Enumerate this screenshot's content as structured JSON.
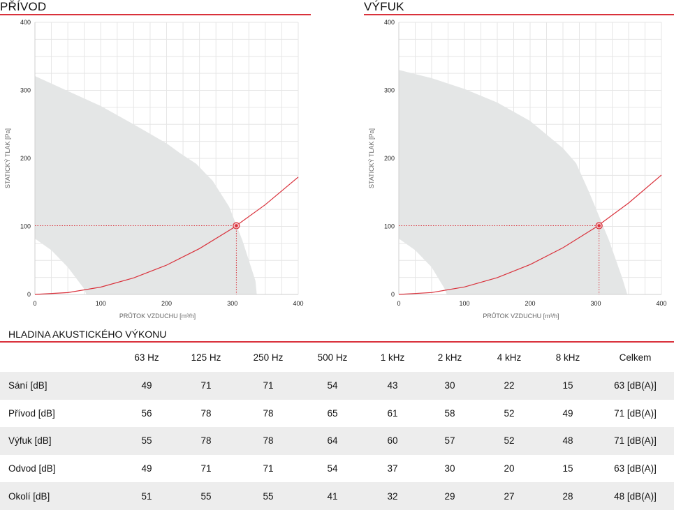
{
  "charts": {
    "supply": {
      "title": "PŘÍVOD"
    },
    "exhaust": {
      "title": "VÝFUK"
    }
  },
  "chart_data": [
    {
      "type": "line",
      "title": "PŘÍVOD",
      "xlabel": "PRŮTOK VZDUCHU [m³/h]",
      "ylabel": "STATICKÝ TLAK [Pa]",
      "xlim": [
        0,
        400
      ],
      "ylim": [
        0,
        400
      ],
      "xticks": [
        0,
        100,
        200,
        300,
        400
      ],
      "yticks": [
        0,
        100,
        200,
        300,
        400
      ],
      "grid": true,
      "operating_envelope": {
        "upper": [
          [
            0,
            321
          ],
          [
            50,
            299
          ],
          [
            100,
            277
          ],
          [
            150,
            250
          ],
          [
            200,
            222
          ],
          [
            220,
            208
          ],
          [
            245,
            192
          ],
          [
            270,
            167
          ],
          [
            295,
            129
          ],
          [
            315,
            80
          ],
          [
            335,
            20
          ],
          [
            337,
            0
          ]
        ],
        "lower": [
          [
            0,
            82
          ],
          [
            25,
            65
          ],
          [
            50,
            40
          ],
          [
            75,
            8
          ],
          [
            78,
            0
          ]
        ]
      },
      "series": [
        {
          "values": [
            [
              0,
              0
            ],
            [
              50,
              2.7
            ],
            [
              100,
              10.8
            ],
            [
              150,
              24.3
            ],
            [
              200,
              43.1
            ],
            [
              250,
              67.4
            ],
            [
              300,
              97
            ],
            [
              350,
              132
            ],
            [
              400,
              172.5
            ]
          ]
        }
      ],
      "operating_point": {
        "x": 306,
        "y": 101
      }
    },
    {
      "type": "line",
      "title": "VÝFUK",
      "xlabel": "PRŮTOK VZDUCHU [m³/h]",
      "ylabel": "STATICKÝ TLAK [Pa]",
      "xlim": [
        0,
        400
      ],
      "ylim": [
        0,
        400
      ],
      "xticks": [
        0,
        100,
        200,
        300,
        400
      ],
      "yticks": [
        0,
        100,
        200,
        300,
        400
      ],
      "grid": true,
      "operating_envelope": {
        "upper": [
          [
            0,
            330
          ],
          [
            50,
            318
          ],
          [
            100,
            302
          ],
          [
            150,
            282
          ],
          [
            200,
            255
          ],
          [
            250,
            215
          ],
          [
            270,
            193
          ],
          [
            290,
            150
          ],
          [
            305,
            115
          ],
          [
            320,
            80
          ],
          [
            340,
            25
          ],
          [
            348,
            0
          ]
        ],
        "lower": [
          [
            0,
            82
          ],
          [
            25,
            65
          ],
          [
            50,
            40
          ],
          [
            70,
            8
          ],
          [
            73,
            0
          ]
        ]
      },
      "series": [
        {
          "values": [
            [
              0,
              0
            ],
            [
              50,
              2.8
            ],
            [
              100,
              11
            ],
            [
              150,
              24.7
            ],
            [
              200,
              43.9
            ],
            [
              250,
              68.6
            ],
            [
              300,
              98.8
            ],
            [
              350,
              134.4
            ],
            [
              400,
              175.5
            ]
          ]
        }
      ],
      "operating_point": {
        "x": 305,
        "y": 101
      }
    },
    {
      "type": "table",
      "title": "HLADINA AKUSTICKÉHO VÝKONU",
      "columns": [
        "",
        "63 Hz",
        "125 Hz",
        "250 Hz",
        "500 Hz",
        "1 kHz",
        "2 kHz",
        "4 kHz",
        "8 kHz",
        "Celkem"
      ],
      "rows": [
        {
          "label": "Sání [dB]",
          "values": [
            "49",
            "71",
            "71",
            "54",
            "43",
            "30",
            "22",
            "15",
            "63 [dB(A)]"
          ]
        },
        {
          "label": "Přívod [dB]",
          "values": [
            "56",
            "78",
            "78",
            "65",
            "61",
            "58",
            "52",
            "49",
            "71 [dB(A)]"
          ]
        },
        {
          "label": "Výfuk [dB]",
          "values": [
            "55",
            "78",
            "78",
            "64",
            "60",
            "57",
            "52",
            "48",
            "71 [dB(A)]"
          ]
        },
        {
          "label": "Odvod [dB]",
          "values": [
            "49",
            "71",
            "71",
            "54",
            "37",
            "30",
            "20",
            "15",
            "63 [dB(A)]"
          ]
        },
        {
          "label": "Okolí [dB]",
          "values": [
            "51",
            "55",
            "55",
            "41",
            "32",
            "29",
            "27",
            "28",
            "48 [dB(A)]"
          ]
        }
      ]
    }
  ],
  "colors": {
    "accent": "#d9313b",
    "envelope": "#e4e6e6",
    "grid": "#e6e6e6",
    "row_stripe": "#ededed"
  }
}
